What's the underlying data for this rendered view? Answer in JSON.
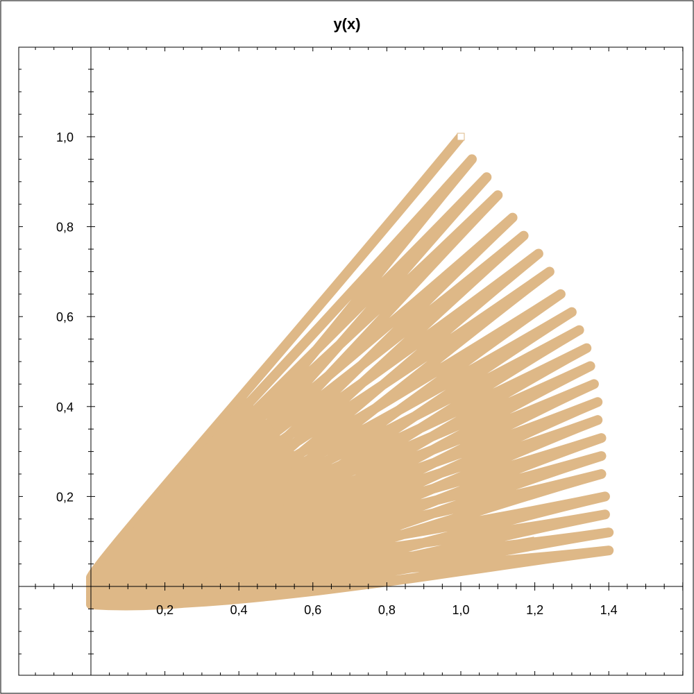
{
  "chart_data": {
    "type": "line",
    "title": "y(x)",
    "xlabel": "",
    "ylabel": "",
    "xlim": [
      -0.15,
      1.6
    ],
    "ylim": [
      -0.2,
      1.2
    ],
    "x_ticks": [
      0.2,
      0.4,
      0.6,
      0.8,
      1.0,
      1.2,
      1.4
    ],
    "x_tick_labels": [
      "0,2",
      "0,4",
      "0,6",
      "0,8",
      "1,0",
      "1,2",
      "1,4"
    ],
    "y_ticks": [
      0.2,
      0.4,
      0.6,
      0.8,
      1.0
    ],
    "y_tick_labels": [
      "0,2",
      "0,4",
      "0,6",
      "0,8",
      "1,0"
    ],
    "grid": false,
    "colors": {
      "curve": "#deb887",
      "inner_line": "#008000",
      "axes": "#000000",
      "frame": "#000000",
      "background": "#ffffff"
    },
    "series": [
      {
        "style": "thick-spiral",
        "start": [
          1.0,
          1.0
        ],
        "end": [
          1.2,
          0.1
        ],
        "loops": 23,
        "apex_x": [
          1.0,
          1.03,
          1.07,
          1.1,
          1.14,
          1.17,
          1.21,
          1.24,
          1.27,
          1.3,
          1.32,
          1.34,
          1.35,
          1.36,
          1.37,
          1.37,
          1.38,
          1.38,
          1.38,
          1.39,
          1.39,
          1.4,
          1.4
        ],
        "apex_y": [
          1.0,
          0.95,
          0.91,
          0.87,
          0.82,
          0.78,
          0.74,
          0.7,
          0.65,
          0.61,
          0.57,
          0.53,
          0.49,
          0.45,
          0.41,
          0.37,
          0.33,
          0.29,
          0.25,
          0.2,
          0.16,
          0.12,
          0.08
        ]
      },
      {
        "style": "thin-line",
        "points": [
          [
            1.0,
            1.0
          ],
          [
            0.25,
            0.25
          ]
        ]
      }
    ]
  }
}
